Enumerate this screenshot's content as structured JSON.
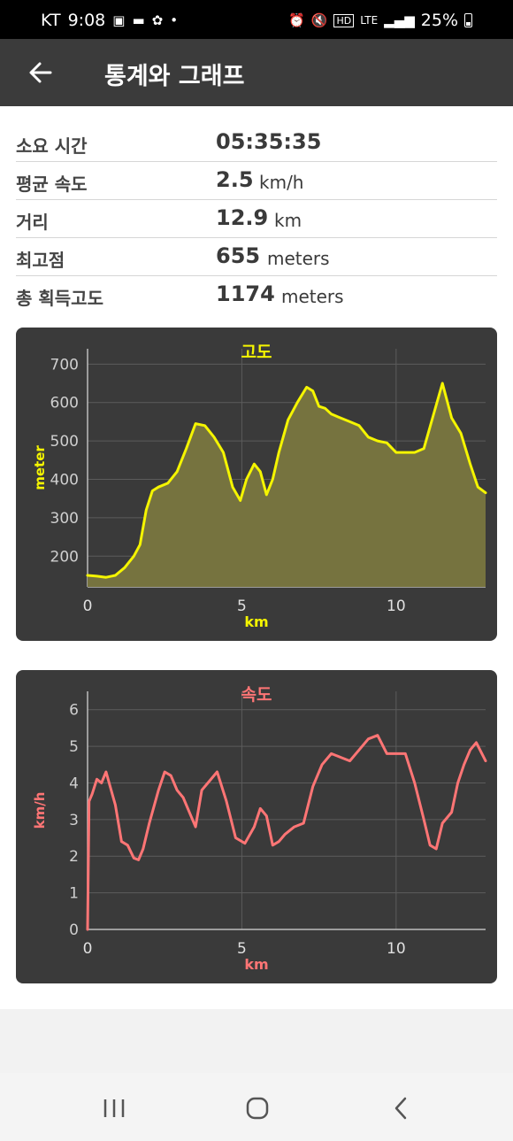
{
  "status_bar": {
    "carrier": "KT",
    "time": "9:08",
    "battery": "25%",
    "left_icons": [
      "gallery-icon",
      "message-icon",
      "flower-icon",
      "dot-icon"
    ],
    "right_icons": [
      "alarm-icon",
      "mute-icon",
      "hd-icon",
      "lte-icon",
      "signal-icon",
      "battery-icon"
    ]
  },
  "app_bar": {
    "title": "통계와 그래프",
    "back_icon": "arrow-left-icon"
  },
  "stats": [
    {
      "label": "소요 시간",
      "value": "05:35:35",
      "unit": ""
    },
    {
      "label": "평균 속도",
      "value": "2.5",
      "unit": "km/h"
    },
    {
      "label": "거리",
      "value": "12.9",
      "unit": "km"
    },
    {
      "label": "최고점",
      "value": "655",
      "unit": "meters"
    },
    {
      "label": "총 획득고도",
      "value": "1174",
      "unit": "meters"
    }
  ],
  "chart_data": [
    {
      "type": "area",
      "title": "고도",
      "xlabel": "km",
      "ylabel": "meter",
      "xlim": [
        0,
        12.9
      ],
      "ylim": [
        120,
        740
      ],
      "xticks": [
        0,
        5,
        10
      ],
      "yticks": [
        200,
        300,
        400,
        500,
        600,
        700
      ],
      "grid": true,
      "color": "#f5f500",
      "fill": "#76733f",
      "x": [
        0,
        0.3,
        0.6,
        0.9,
        1.2,
        1.5,
        1.7,
        1.9,
        2.1,
        2.3,
        2.6,
        2.9,
        3.2,
        3.5,
        3.8,
        4.1,
        4.4,
        4.7,
        4.95,
        5.15,
        5.4,
        5.6,
        5.8,
        6.0,
        6.2,
        6.5,
        6.8,
        7.1,
        7.3,
        7.5,
        7.7,
        7.9,
        8.2,
        8.5,
        8.8,
        9.1,
        9.4,
        9.7,
        10.0,
        10.3,
        10.6,
        10.9,
        11.2,
        11.5,
        11.8,
        12.1,
        12.4,
        12.65,
        12.9
      ],
      "values": [
        150,
        148,
        145,
        150,
        170,
        200,
        230,
        320,
        370,
        380,
        390,
        420,
        480,
        545,
        540,
        510,
        470,
        380,
        345,
        400,
        440,
        420,
        360,
        400,
        470,
        555,
        600,
        640,
        630,
        590,
        585,
        570,
        560,
        550,
        540,
        510,
        500,
        495,
        470,
        470,
        470,
        480,
        565,
        650,
        560,
        520,
        440,
        380,
        365
      ]
    },
    {
      "type": "line",
      "title": "속도",
      "xlabel": "km",
      "ylabel": "km/h",
      "xlim": [
        0,
        12.9
      ],
      "ylim": [
        0,
        6.5
      ],
      "xticks": [
        0,
        5,
        10
      ],
      "yticks": [
        0,
        1,
        2,
        3,
        4,
        5,
        6
      ],
      "grid": true,
      "color": "#ff7575",
      "x": [
        0,
        0.05,
        0.15,
        0.3,
        0.45,
        0.6,
        0.7,
        0.9,
        1.1,
        1.3,
        1.5,
        1.65,
        1.8,
        2.0,
        2.3,
        2.5,
        2.7,
        2.9,
        3.1,
        3.3,
        3.5,
        3.7,
        3.9,
        4.2,
        4.5,
        4.8,
        5.1,
        5.4,
        5.6,
        5.8,
        6.0,
        6.2,
        6.4,
        6.7,
        7.0,
        7.3,
        7.6,
        7.9,
        8.2,
        8.5,
        8.8,
        9.1,
        9.4,
        9.7,
        10.0,
        10.3,
        10.6,
        10.9,
        11.1,
        11.3,
        11.5,
        11.8,
        12.0,
        12.2,
        12.4,
        12.6,
        12.9
      ],
      "values": [
        0,
        3.5,
        3.7,
        4.1,
        4.0,
        4.3,
        4.0,
        3.4,
        2.4,
        2.3,
        1.95,
        1.9,
        2.2,
        2.9,
        3.8,
        4.3,
        4.2,
        3.8,
        3.6,
        3.2,
        2.8,
        3.8,
        4.0,
        4.3,
        3.5,
        2.5,
        2.35,
        2.8,
        3.3,
        3.1,
        2.3,
        2.4,
        2.6,
        2.8,
        2.9,
        3.9,
        4.5,
        4.8,
        4.7,
        4.6,
        4.9,
        5.2,
        5.3,
        4.8,
        4.8,
        4.8,
        4.0,
        3.0,
        2.3,
        2.2,
        2.9,
        3.2,
        4.0,
        4.5,
        4.9,
        5.1,
        4.6
      ]
    }
  ],
  "nav_bar": {
    "icons": [
      "recent-apps-icon",
      "home-icon",
      "back-icon"
    ]
  }
}
